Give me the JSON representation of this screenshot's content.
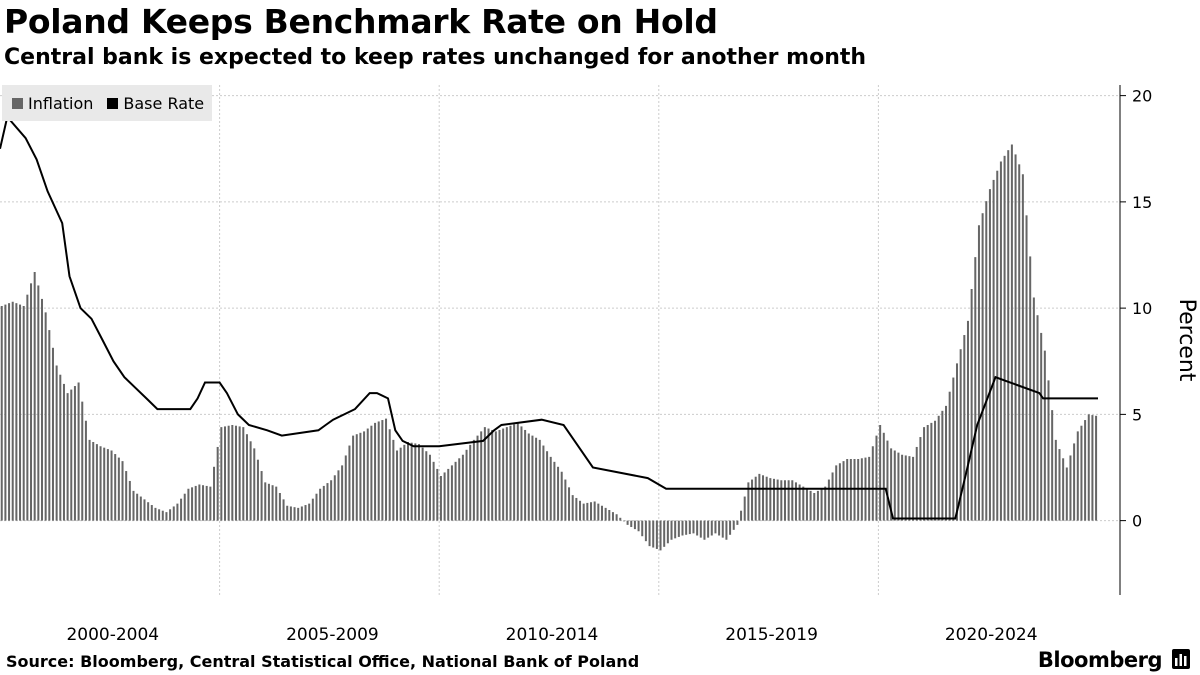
{
  "title": "Poland Keeps Benchmark Rate on Hold",
  "subtitle": "Central bank is expected to keep rates unchanged for another month",
  "source": "Source: Bloomberg, Central Statistical Office, National Bank of Poland",
  "brand": "Bloomberg",
  "brand_icon": "bloomberg-terminal-icon",
  "colors": {
    "inflation": "#666666",
    "base_rate": "#000000",
    "grid": "#cccccc",
    "legend_bg": "#e9e9e9"
  },
  "chart_data": {
    "type": "bar+line",
    "x_start": "2000-01",
    "x_end": "2025-01",
    "x_tick_labels": [
      "2000-2004",
      "2005-2009",
      "2010-2014",
      "2015-2019",
      "2020-2024"
    ],
    "ylabel": "Percent",
    "y_ticks": [
      0,
      5,
      10,
      15,
      20
    ],
    "ylim": [
      -3.5,
      20.5
    ],
    "y_axis_side": "right",
    "grid": true,
    "legend_position": "top-left",
    "series": [
      {
        "name": "Inflation",
        "type": "bar",
        "color": "#666666",
        "x": [
          "2000-01",
          "2000-04",
          "2000-07",
          "2000-10",
          "2001-01",
          "2001-04",
          "2001-07",
          "2001-10",
          "2002-01",
          "2002-04",
          "2002-07",
          "2002-10",
          "2003-01",
          "2003-04",
          "2003-07",
          "2003-10",
          "2004-01",
          "2004-04",
          "2004-07",
          "2004-10",
          "2005-01",
          "2005-04",
          "2005-07",
          "2005-10",
          "2006-01",
          "2006-04",
          "2006-07",
          "2006-10",
          "2007-01",
          "2007-04",
          "2007-07",
          "2007-10",
          "2008-01",
          "2008-04",
          "2008-07",
          "2008-10",
          "2009-01",
          "2009-04",
          "2009-07",
          "2009-10",
          "2010-01",
          "2010-04",
          "2010-07",
          "2010-10",
          "2011-01",
          "2011-04",
          "2011-07",
          "2011-10",
          "2012-01",
          "2012-04",
          "2012-07",
          "2012-10",
          "2013-01",
          "2013-04",
          "2013-07",
          "2013-10",
          "2014-01",
          "2014-04",
          "2014-07",
          "2014-10",
          "2015-01",
          "2015-04",
          "2015-07",
          "2015-10",
          "2016-01",
          "2016-04",
          "2016-07",
          "2016-10",
          "2017-01",
          "2017-04",
          "2017-07",
          "2017-10",
          "2018-01",
          "2018-04",
          "2018-07",
          "2018-10",
          "2019-01",
          "2019-04",
          "2019-07",
          "2019-10",
          "2020-01",
          "2020-04",
          "2020-07",
          "2020-10",
          "2021-01",
          "2021-04",
          "2021-07",
          "2021-10",
          "2022-01",
          "2022-04",
          "2022-07",
          "2022-10",
          "2023-01",
          "2023-04",
          "2023-07",
          "2023-10",
          "2024-01",
          "2024-04",
          "2024-07",
          "2024-10",
          "2025-01"
        ],
        "values": [
          10.1,
          10.3,
          10.1,
          11.7,
          9.8,
          7.3,
          6.0,
          6.5,
          3.8,
          3.5,
          3.3,
          2.8,
          1.4,
          1.0,
          0.6,
          0.4,
          0.8,
          1.5,
          1.7,
          1.6,
          4.4,
          4.5,
          4.4,
          3.4,
          1.8,
          1.6,
          0.7,
          0.6,
          0.8,
          1.5,
          1.9,
          2.6,
          4.0,
          4.2,
          4.6,
          4.8,
          3.3,
          3.7,
          3.6,
          3.1,
          2.1,
          2.6,
          3.1,
          3.8,
          4.4,
          4.2,
          4.4,
          4.6,
          4.1,
          3.8,
          3.0,
          2.3,
          1.2,
          0.8,
          0.9,
          0.6,
          0.3,
          -0.2,
          -0.5,
          -1.2,
          -1.4,
          -0.9,
          -0.7,
          -0.6,
          -0.9,
          -0.6,
          -0.9,
          -0.2,
          1.8,
          2.2,
          2.0,
          1.9,
          1.9,
          1.6,
          1.3,
          1.6,
          2.6,
          2.9,
          2.9,
          3.0,
          4.5,
          3.4,
          3.1,
          3.0,
          4.4,
          4.7,
          5.4,
          7.4,
          9.4,
          13.9,
          15.6,
          16.9,
          17.7,
          16.3,
          10.5,
          8.0,
          3.8,
          2.5,
          4.2,
          5.0,
          4.9
        ],
        "bar_label_note": ""
      },
      {
        "name": "Base Rate",
        "type": "line",
        "color": "#000000",
        "x": [
          "2000-01",
          "2000-03",
          "2000-08",
          "2000-11",
          "2001-02",
          "2001-06",
          "2001-08",
          "2001-11",
          "2002-02",
          "2002-05",
          "2002-08",
          "2002-11",
          "2003-02",
          "2003-05",
          "2003-08",
          "2003-10",
          "2004-05",
          "2004-07",
          "2004-09",
          "2005-01",
          "2005-03",
          "2005-06",
          "2005-09",
          "2006-02",
          "2006-06",
          "2007-04",
          "2007-06",
          "2007-08",
          "2008-02",
          "2008-06",
          "2008-08",
          "2008-11",
          "2009-01",
          "2009-03",
          "2009-06",
          "2010-01",
          "2011-01",
          "2011-04",
          "2011-06",
          "2012-05",
          "2012-11",
          "2013-02",
          "2013-07",
          "2014-10",
          "2015-03",
          "2020-03",
          "2020-05",
          "2021-10",
          "2022-01",
          "2022-04",
          "2022-09",
          "2023-09",
          "2023-10",
          "2025-01"
        ],
        "values": [
          17.5,
          19.0,
          18.0,
          17.0,
          15.5,
          14.0,
          11.5,
          10.0,
          9.5,
          8.5,
          7.5,
          6.75,
          6.25,
          5.75,
          5.25,
          5.25,
          5.25,
          5.75,
          6.5,
          6.5,
          6.0,
          5.0,
          4.5,
          4.25,
          4.0,
          4.25,
          4.5,
          4.75,
          5.25,
          6.0,
          6.0,
          5.75,
          4.25,
          3.75,
          3.5,
          3.5,
          3.75,
          4.25,
          4.5,
          4.75,
          4.5,
          3.75,
          2.5,
          2.0,
          1.5,
          1.5,
          0.1,
          0.1,
          2.25,
          4.5,
          6.75,
          6.0,
          5.75,
          5.75
        ]
      }
    ]
  }
}
